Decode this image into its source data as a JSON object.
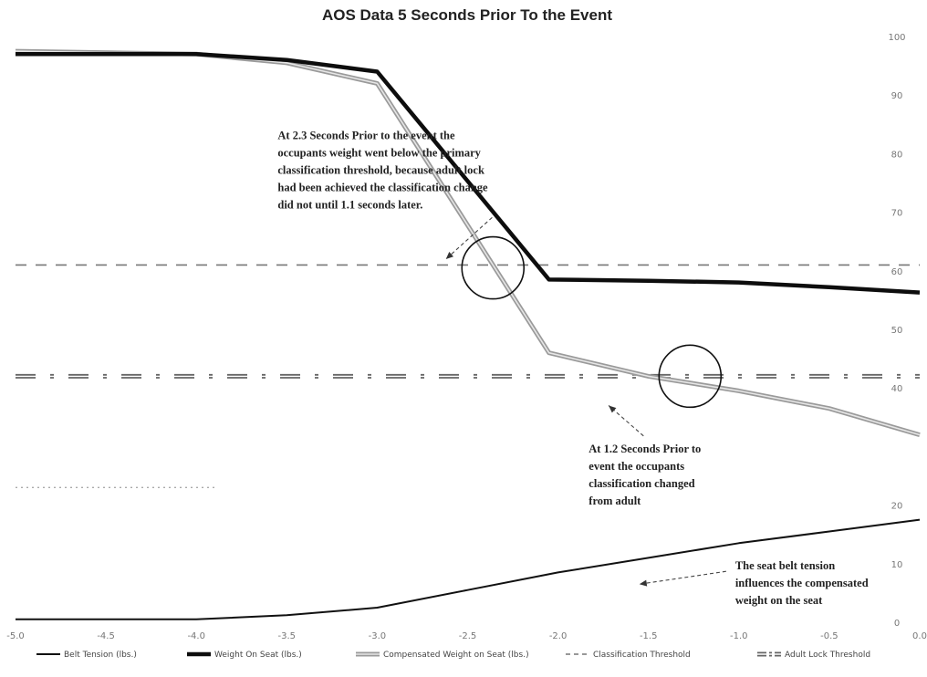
{
  "chart_data": {
    "type": "line",
    "title": "AOS Data 5 Seconds Prior To the Event",
    "xlim": [
      -5.0,
      0.0
    ],
    "ylim": [
      0,
      100
    ],
    "x_ticks": [
      "-5.0",
      "-4.5",
      "-4.0",
      "-3.5",
      "-3.0",
      "-2.5",
      "-2.0",
      "-1.5",
      "-1.0",
      "-0.5",
      "0.0"
    ],
    "y_ticks": [
      {
        "value": 0,
        "label": "0"
      },
      {
        "value": 10,
        "label": "10"
      },
      {
        "value": 20,
        "label": "20"
      },
      {
        "value": 40,
        "label": "40"
      },
      {
        "value": 50,
        "label": "50"
      },
      {
        "value": 60,
        "label": "60"
      },
      {
        "value": 70,
        "label": "70"
      },
      {
        "value": 80,
        "label": "80"
      },
      {
        "value": 90,
        "label": "90"
      },
      {
        "value": 100,
        "label": "100"
      }
    ],
    "series": [
      {
        "name": "Belt Tension (lbs.)",
        "color": "#111111",
        "style": "solid-thin",
        "points": [
          [
            -5.0,
            0.5
          ],
          [
            -4.0,
            0.5
          ],
          [
            -3.5,
            1.2
          ],
          [
            -3.0,
            2.5
          ],
          [
            -2.5,
            5.5
          ],
          [
            -2.0,
            8.5
          ],
          [
            -1.5,
            11.0
          ],
          [
            -1.0,
            13.5
          ],
          [
            -0.5,
            15.5
          ],
          [
            0.0,
            17.5
          ]
        ]
      },
      {
        "name": "Weight On Seat (lbs.)",
        "color": "#0d0d0d",
        "style": "solid-thick",
        "points": [
          [
            -5.0,
            97.0
          ],
          [
            -4.0,
            97.0
          ],
          [
            -3.5,
            96.0
          ],
          [
            -3.0,
            94.0
          ],
          [
            -2.05,
            58.5
          ],
          [
            -1.5,
            58.3
          ],
          [
            -1.0,
            58.0
          ],
          [
            -0.5,
            57.2
          ],
          [
            0.0,
            56.3
          ]
        ]
      },
      {
        "name": "Compensated Weight on Seat (lbs.)",
        "color": "#9a9a9a",
        "style": "double-grey",
        "points": [
          [
            -5.0,
            97.5
          ],
          [
            -4.0,
            97.0
          ],
          [
            -3.5,
            95.5
          ],
          [
            -3.0,
            92.0
          ],
          [
            -2.05,
            46.0
          ],
          [
            -1.5,
            42.0
          ],
          [
            -1.0,
            39.5
          ],
          [
            -0.5,
            36.5
          ],
          [
            0.0,
            32.0
          ]
        ]
      },
      {
        "name": "Classification Threshold",
        "color": "#777777",
        "style": "dashed",
        "points": [
          [
            -5.0,
            61.0
          ],
          [
            0.0,
            61.0
          ]
        ]
      },
      {
        "name": "Adult Lock Threshold",
        "color": "#666666",
        "style": "dash-dot",
        "points": [
          [
            -5.0,
            42.0
          ],
          [
            0.0,
            42.0
          ]
        ]
      }
    ],
    "extra_lines": [
      {
        "color": "#aaaaaa",
        "style": "dotted",
        "points": [
          [
            -5.0,
            23.0
          ],
          [
            -3.9,
            23.0
          ]
        ]
      }
    ],
    "annotations": [
      {
        "lines": [
          "At 2.3 Seconds Prior to  the event the",
          "occupants weight went below the primary",
          "classification threshold, because adult lock",
          "had been achieved the classification change",
          "did not until 1.1 seconds later."
        ],
        "anchor_x": -3.55,
        "anchor_y": 82.5,
        "arrow_to": [
          -2.62,
          62.0
        ],
        "circle_center": [
          -2.36,
          60.5
        ]
      },
      {
        "lines": [
          "At  1.2 Seconds Prior to",
          "event the occupants",
          "classification changed",
          " from adult"
        ],
        "anchor_x": -1.83,
        "anchor_y": 29.0,
        "arrow_to": [
          -1.72,
          37.0
        ],
        "circle_center": [
          -1.27,
          42.0
        ]
      },
      {
        "lines": [
          "The seat belt tension",
          "influences the compensated",
          "weight on the seat"
        ],
        "anchor_x": -1.02,
        "anchor_y": 9.0,
        "arrow_to": [
          -1.55,
          6.5
        ],
        "circle_center": null
      }
    ]
  }
}
